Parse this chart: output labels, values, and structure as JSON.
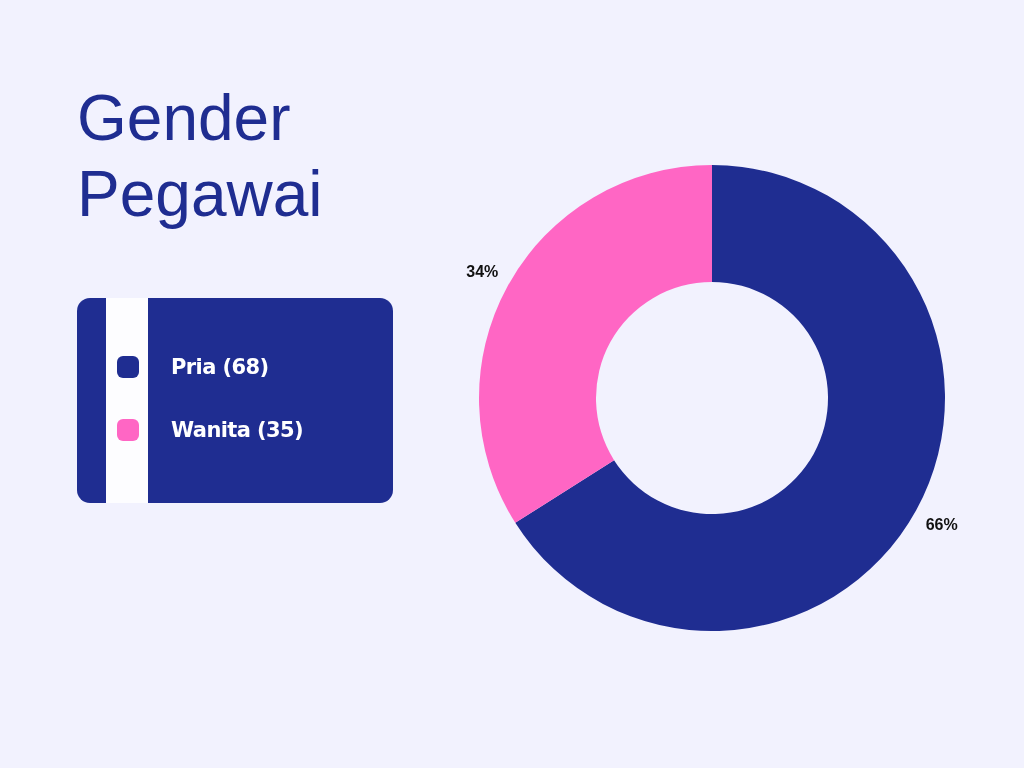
{
  "chart_data": {
    "type": "donut",
    "title": "Gender Pegawai",
    "categories": [
      "Pria (68)",
      "Wanita (35)"
    ],
    "values": [
      66,
      34
    ],
    "colors": [
      "#1f2d91",
      "#ff66c4"
    ],
    "value_labels": [
      "66%",
      "34%"
    ],
    "legend": "left"
  }
}
